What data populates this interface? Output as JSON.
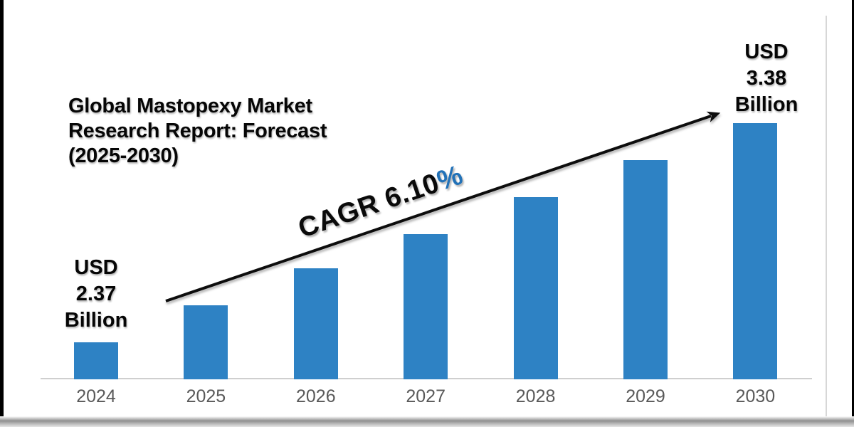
{
  "title": {
    "lines": [
      "Global Mastopexy Market",
      "Research Report: Forecast",
      "(2025-2030)"
    ]
  },
  "annotations": {
    "start_label": {
      "lines": [
        "USD",
        "2.37",
        "Billion"
      ]
    },
    "end_label": {
      "lines": [
        "USD",
        "3.38",
        "Billion"
      ]
    },
    "cagr": {
      "text_black": "CAGR 6.10",
      "percent": "%",
      "percent_color": "#2272b8"
    }
  },
  "chart_data": {
    "type": "bar",
    "title": "Global Mastopexy Market Research Report: Forecast (2025-2030)",
    "categories": [
      "2024",
      "2025",
      "2026",
      "2027",
      "2028",
      "2029",
      "2030"
    ],
    "values": [
      2.37,
      2.54,
      2.71,
      2.87,
      3.04,
      3.21,
      3.38
    ],
    "unit": "USD Billion",
    "xlabel": "",
    "ylabel": "",
    "ylim": [
      2.2,
      3.38
    ],
    "grid": false,
    "legend": "none",
    "cagr_percent": 6.1,
    "first_value_label": "USD 2.37 Billion",
    "last_value_label": "USD 3.38 Billion",
    "bar_color": "#2e82c4",
    "axis_line_color": "#cfcfcf",
    "tick_color": "#595959",
    "arrow_color": "#0d0d0d"
  }
}
